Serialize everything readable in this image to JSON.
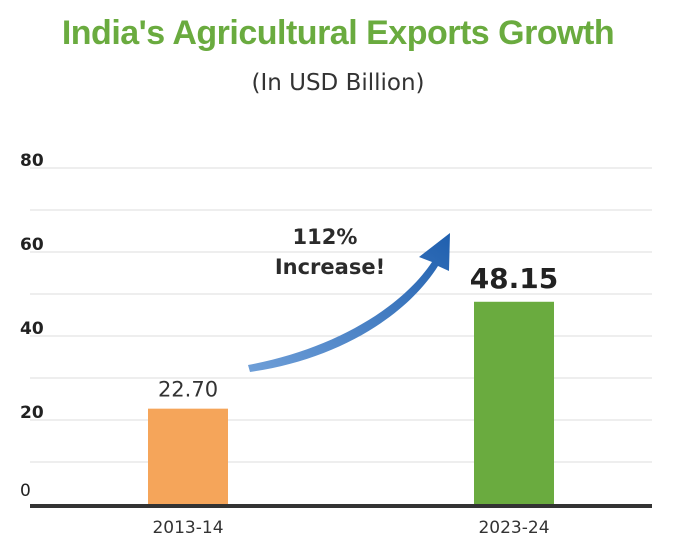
{
  "chart_data": {
    "type": "bar",
    "title": "India's Agricultural Exports Growth",
    "subtitle": "(In USD Billion)",
    "categories": [
      "2013-14",
      "2023-24"
    ],
    "values": [
      22.7,
      48.15
    ],
    "value_labels": [
      "22.70",
      "48.15"
    ],
    "yticks": [
      0,
      20,
      40,
      60,
      80
    ],
    "ylim": [
      0,
      85
    ],
    "grid": true,
    "annotation": {
      "line1": "112%",
      "line2": "Increase!"
    },
    "colors": {
      "title": "#6aab3f",
      "bars": [
        "#f5a55a",
        "#6aab3f"
      ],
      "arrow": "#2f6fbe",
      "grid": "#dcdcdc",
      "axis": "#333333"
    }
  }
}
